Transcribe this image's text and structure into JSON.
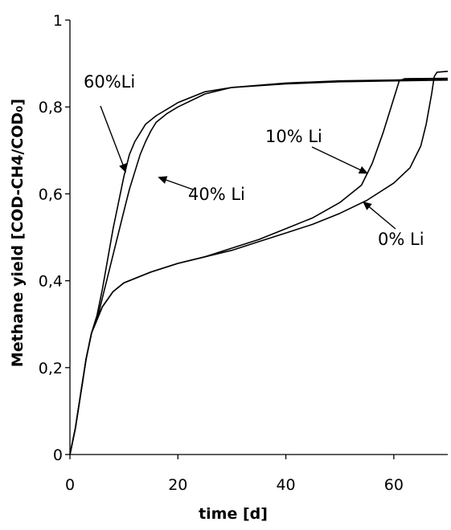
{
  "chart_data": {
    "type": "line",
    "title": "",
    "xlabel": "time [d]",
    "ylabel": "Methane yield [COD-CH4/COD₀]",
    "xlim": [
      0,
      70
    ],
    "ylim": [
      0,
      1
    ],
    "x_ticks": [
      0,
      20,
      40,
      60
    ],
    "x_tick_labels": [
      "0",
      "20",
      "40",
      "60"
    ],
    "y_ticks": [
      0,
      0.2,
      0.4,
      0.6,
      0.8,
      1
    ],
    "y_tick_labels": [
      "0",
      "0,2",
      "0,4",
      "0,6",
      "0,8",
      "1"
    ],
    "grid": false,
    "legend": "none",
    "line_color": "#000000",
    "series": [
      {
        "name": "60%Li",
        "points": [
          [
            0,
            0
          ],
          [
            1,
            0.06
          ],
          [
            2,
            0.14
          ],
          [
            3,
            0.22
          ],
          [
            4,
            0.28
          ],
          [
            5,
            0.32
          ],
          [
            6,
            0.38
          ],
          [
            7,
            0.45
          ],
          [
            8,
            0.52
          ],
          [
            9,
            0.58
          ],
          [
            10,
            0.64
          ],
          [
            11,
            0.69
          ],
          [
            12,
            0.72
          ],
          [
            13,
            0.74
          ],
          [
            14,
            0.76
          ],
          [
            15,
            0.77
          ],
          [
            16,
            0.78
          ],
          [
            18,
            0.795
          ],
          [
            20,
            0.81
          ],
          [
            25,
            0.835
          ],
          [
            30,
            0.845
          ],
          [
            40,
            0.855
          ],
          [
            50,
            0.86
          ],
          [
            60,
            0.862
          ],
          [
            70,
            0.865
          ]
        ]
      },
      {
        "name": "40% Li",
        "points": [
          [
            0,
            0
          ],
          [
            1,
            0.06
          ],
          [
            2,
            0.14
          ],
          [
            3,
            0.22
          ],
          [
            4,
            0.28
          ],
          [
            5,
            0.31
          ],
          [
            6,
            0.36
          ],
          [
            7,
            0.41
          ],
          [
            8,
            0.46
          ],
          [
            9,
            0.51
          ],
          [
            10,
            0.56
          ],
          [
            11,
            0.61
          ],
          [
            12,
            0.65
          ],
          [
            13,
            0.69
          ],
          [
            14,
            0.72
          ],
          [
            15,
            0.745
          ],
          [
            16,
            0.765
          ],
          [
            17,
            0.775
          ],
          [
            18,
            0.785
          ],
          [
            20,
            0.8
          ],
          [
            25,
            0.83
          ],
          [
            30,
            0.845
          ],
          [
            40,
            0.853
          ],
          [
            50,
            0.858
          ],
          [
            60,
            0.86
          ],
          [
            70,
            0.862
          ]
        ]
      },
      {
        "name": "10% Li",
        "points": [
          [
            0,
            0
          ],
          [
            1,
            0.06
          ],
          [
            2,
            0.14
          ],
          [
            3,
            0.22
          ],
          [
            4,
            0.28
          ],
          [
            5,
            0.31
          ],
          [
            6,
            0.34
          ],
          [
            8,
            0.375
          ],
          [
            10,
            0.395
          ],
          [
            15,
            0.42
          ],
          [
            20,
            0.44
          ],
          [
            25,
            0.455
          ],
          [
            30,
            0.475
          ],
          [
            35,
            0.495
          ],
          [
            40,
            0.52
          ],
          [
            45,
            0.545
          ],
          [
            50,
            0.58
          ],
          [
            54,
            0.62
          ],
          [
            56,
            0.67
          ],
          [
            58,
            0.74
          ],
          [
            60,
            0.82
          ],
          [
            61,
            0.86
          ],
          [
            62,
            0.865
          ],
          [
            70,
            0.866
          ]
        ]
      },
      {
        "name": "0% Li",
        "points": [
          [
            0,
            0
          ],
          [
            1,
            0.06
          ],
          [
            2,
            0.14
          ],
          [
            3,
            0.22
          ],
          [
            4,
            0.28
          ],
          [
            5,
            0.31
          ],
          [
            6,
            0.34
          ],
          [
            8,
            0.375
          ],
          [
            10,
            0.395
          ],
          [
            15,
            0.42
          ],
          [
            20,
            0.44
          ],
          [
            25,
            0.455
          ],
          [
            30,
            0.47
          ],
          [
            35,
            0.49
          ],
          [
            40,
            0.51
          ],
          [
            45,
            0.53
          ],
          [
            50,
            0.555
          ],
          [
            55,
            0.585
          ],
          [
            60,
            0.625
          ],
          [
            63,
            0.66
          ],
          [
            65,
            0.71
          ],
          [
            66,
            0.76
          ],
          [
            67,
            0.83
          ],
          [
            67.5,
            0.87
          ],
          [
            68,
            0.88
          ],
          [
            70,
            0.882
          ]
        ]
      }
    ],
    "annotations": [
      {
        "text": "60%Li",
        "series": "60%Li",
        "point": [
          10.5,
          0.645
        ]
      },
      {
        "text": "40% Li",
        "series": "40% Li",
        "point": [
          16,
          0.64
        ]
      },
      {
        "text": "10% Li",
        "series": "10% Li",
        "point": [
          55.5,
          0.645
        ]
      },
      {
        "text": "0% Li",
        "series": "0% Li",
        "point": [
          54,
          0.585
        ]
      }
    ]
  }
}
